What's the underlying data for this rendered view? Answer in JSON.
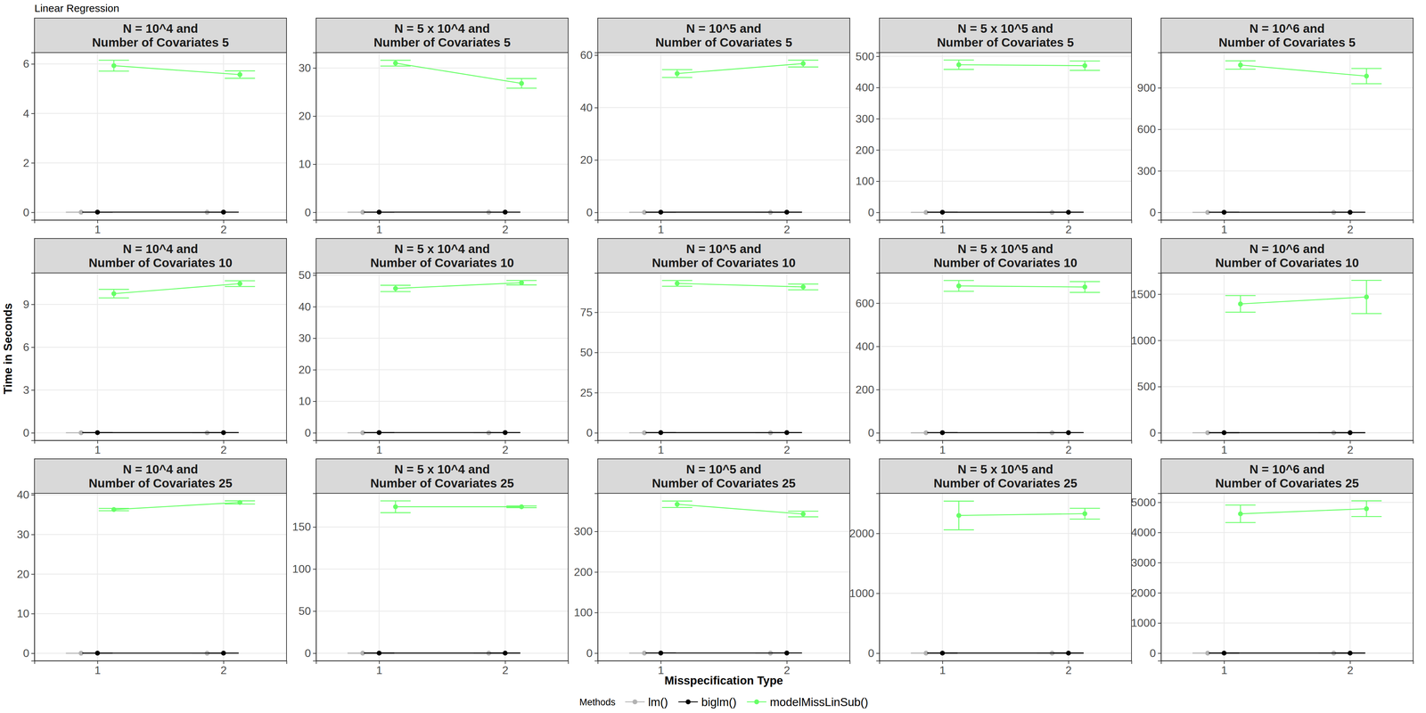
{
  "chart_data": {
    "type": "line",
    "title": "Linear Regression",
    "x_label": "Misspecification Type",
    "y_label": "Time in Seconds",
    "legend_title": "Methods",
    "legend": "bottom",
    "grid": true,
    "x": [
      1,
      2
    ],
    "xlim": [
      0.5,
      2.5
    ],
    "xticks": [
      1,
      2
    ],
    "series": [
      {
        "name": "lm()",
        "color": "#b3b3b3",
        "marker": "circle",
        "line_style": "solid"
      },
      {
        "name": "biglm()",
        "color": "#000000",
        "marker": "circle",
        "line_style": "solid"
      },
      {
        "name": "modelMissLinSub()",
        "color": "#66ff66",
        "marker": "circle",
        "line_style": "solid"
      }
    ],
    "panels": [
      {
        "title": "N = 10^4 and\nNumber of Covariates 5",
        "ylim": [
          -0.31,
          6.46
        ],
        "yticks": [
          0,
          2,
          4,
          6
        ],
        "series": [
          {
            "values": [
              0.005,
              0.005
            ],
            "errors": [
              0,
              0
            ]
          },
          {
            "values": [
              0.01,
              0.01
            ],
            "errors": [
              0,
              0
            ]
          },
          {
            "values": [
              5.93,
              5.57
            ],
            "errors": [
              0.22,
              0.15
            ]
          }
        ]
      },
      {
        "title": "N = 5 x 10^4 and\nNumber of Covariates 5",
        "ylim": [
          -1.6,
          33.2
        ],
        "yticks": [
          0,
          10,
          20,
          30
        ],
        "series": [
          {
            "values": [
              0.02,
              0.02
            ],
            "errors": [
              0,
              0
            ]
          },
          {
            "values": [
              0.05,
              0.05
            ],
            "errors": [
              0,
              0
            ]
          },
          {
            "values": [
              31.0,
              26.8
            ],
            "errors": [
              0.6,
              1.0
            ]
          }
        ]
      },
      {
        "title": "N = 10^5 and\nNumber of Covariates 5",
        "ylim": [
          -2.9,
          61.0
        ],
        "yticks": [
          0,
          20,
          40,
          60
        ],
        "series": [
          {
            "values": [
              0.04,
              0.04
            ],
            "errors": [
              0,
              0
            ]
          },
          {
            "values": [
              0.1,
              0.1
            ],
            "errors": [
              0,
              0
            ]
          },
          {
            "values": [
              53.0,
              56.8
            ],
            "errors": [
              1.5,
              1.3
            ]
          }
        ]
      },
      {
        "title": "N = 5 x 10^5 and\nNumber of Covariates 5",
        "ylim": [
          -24.4,
          512
        ],
        "yticks": [
          0,
          100,
          200,
          300,
          400,
          500
        ],
        "series": [
          {
            "values": [
              0.2,
              0.2
            ],
            "errors": [
              0,
              0
            ]
          },
          {
            "values": [
              0.5,
              0.5
            ],
            "errors": [
              0,
              0
            ]
          },
          {
            "values": [
              473,
              470
            ],
            "errors": [
              15,
              15
            ]
          }
        ]
      },
      {
        "title": "N = 10^6 and\nNumber of Covariates 5",
        "ylim": [
          -55,
          1155
        ],
        "yticks": [
          0,
          300,
          600,
          900
        ],
        "series": [
          {
            "values": [
              0.4,
              0.4
            ],
            "errors": [
              0,
              0
            ]
          },
          {
            "values": [
              1,
              1
            ],
            "errors": [
              0,
              0
            ]
          },
          {
            "values": [
              1065,
              985
            ],
            "errors": [
              30,
              55
            ]
          }
        ]
      },
      {
        "title": "N = 10^4 and\nNumber of Covariates 10",
        "ylim": [
          -0.53,
          11.2
        ],
        "yticks": [
          0,
          3,
          6,
          9
        ],
        "series": [
          {
            "values": [
              0.008,
              0.008
            ],
            "errors": [
              0,
              0
            ]
          },
          {
            "values": [
              0.015,
              0.015
            ],
            "errors": [
              0,
              0
            ]
          },
          {
            "values": [
              9.75,
              10.45
            ],
            "errors": [
              0.3,
              0.2
            ]
          }
        ]
      },
      {
        "title": "N = 5 x 10^4 and\nNumber of Covariates 10",
        "ylim": [
          -2.4,
          50.7
        ],
        "yticks": [
          0,
          10,
          20,
          30,
          40,
          50
        ],
        "series": [
          {
            "values": [
              0.03,
              0.03
            ],
            "errors": [
              0,
              0
            ]
          },
          {
            "values": [
              0.08,
              0.08
            ],
            "errors": [
              0,
              0
            ]
          },
          {
            "values": [
              45.8,
              47.6
            ],
            "errors": [
              1.0,
              0.7
            ]
          }
        ]
      },
      {
        "title": "N = 10^5 and\nNumber of Covariates 10",
        "ylim": [
          -4.7,
          99.5
        ],
        "yticks": [
          0,
          25,
          50,
          75
        ],
        "series": [
          {
            "values": [
              0.06,
              0.06
            ],
            "errors": [
              0,
              0
            ]
          },
          {
            "values": [
              0.15,
              0.15
            ],
            "errors": [
              0,
              0
            ]
          },
          {
            "values": [
              93.0,
              90.8
            ],
            "errors": [
              1.8,
              1.8
            ]
          }
        ]
      },
      {
        "title": "N = 5 x 10^5 and\nNumber of Covariates 10",
        "ylim": [
          -35,
          740
        ],
        "yticks": [
          0,
          200,
          400,
          600
        ],
        "series": [
          {
            "values": [
              0.3,
              0.3
            ],
            "errors": [
              0,
              0
            ]
          },
          {
            "values": [
              0.75,
              0.75
            ],
            "errors": [
              0,
              0
            ]
          },
          {
            "values": [
              680,
              675
            ],
            "errors": [
              25,
              25
            ]
          }
        ]
      },
      {
        "title": "N = 10^6 and\nNumber of Covariates 10",
        "ylim": [
          -82,
          1730
        ],
        "yticks": [
          0,
          500,
          1000,
          1500
        ],
        "series": [
          {
            "values": [
              0.6,
              0.6
            ],
            "errors": [
              0,
              0
            ]
          },
          {
            "values": [
              1.5,
              1.5
            ],
            "errors": [
              0,
              0
            ]
          },
          {
            "values": [
              1395,
              1470
            ],
            "errors": [
              90,
              180
            ]
          }
        ]
      },
      {
        "title": "N = 10^4 and\nNumber of Covariates 25",
        "ylim": [
          -1.9,
          40.4
        ],
        "yticks": [
          0,
          10,
          20,
          30,
          40
        ],
        "series": [
          {
            "values": [
              0.015,
              0.015
            ],
            "errors": [
              0,
              0
            ]
          },
          {
            "values": [
              0.03,
              0.03
            ],
            "errors": [
              0,
              0
            ]
          },
          {
            "values": [
              36.3,
              38.1
            ],
            "errors": [
              0.3,
              0.4
            ]
          }
        ]
      },
      {
        "title": "N = 5 x 10^4 and\nNumber of Covariates 25",
        "ylim": [
          -9,
          190
        ],
        "yticks": [
          0,
          50,
          100,
          150
        ],
        "series": [
          {
            "values": [
              0.06,
              0.06
            ],
            "errors": [
              0,
              0
            ]
          },
          {
            "values": [
              0.15,
              0.15
            ],
            "errors": [
              0,
              0
            ]
          },
          {
            "values": [
              174,
              174
            ],
            "errors": [
              7,
              1
            ]
          }
        ]
      },
      {
        "title": "N = 10^5 and\nNumber of Covariates 25",
        "ylim": [
          -18.8,
          394
        ],
        "yticks": [
          0,
          100,
          200,
          300
        ],
        "series": [
          {
            "values": [
              0.12,
              0.12
            ],
            "errors": [
              0,
              0
            ]
          },
          {
            "values": [
              0.3,
              0.3
            ],
            "errors": [
              0,
              0
            ]
          },
          {
            "values": [
              367,
              343
            ],
            "errors": [
              8,
              7
            ]
          }
        ]
      },
      {
        "title": "N = 5 x 10^5 and\nNumber of Covariates 25",
        "ylim": [
          -127,
          2670
        ],
        "yticks": [
          0,
          1000,
          2000
        ],
        "series": [
          {
            "values": [
              0.6,
              0.6
            ],
            "errors": [
              0,
              0
            ]
          },
          {
            "values": [
              1.5,
              1.5
            ],
            "errors": [
              0,
              0
            ]
          },
          {
            "values": [
              2300,
              2330
            ],
            "errors": [
              240,
              90
            ]
          }
        ]
      },
      {
        "title": "N = 10^6 and\nNumber of Covariates 25",
        "ylim": [
          -252,
          5300
        ],
        "yticks": [
          0,
          1000,
          2000,
          3000,
          4000,
          5000
        ],
        "series": [
          {
            "values": [
              1.2,
              1.2
            ],
            "errors": [
              0,
              0
            ]
          },
          {
            "values": [
              3,
              3
            ],
            "errors": [
              0,
              0
            ]
          },
          {
            "values": [
              4620,
              4790
            ],
            "errors": [
              290,
              260
            ]
          }
        ]
      }
    ]
  }
}
